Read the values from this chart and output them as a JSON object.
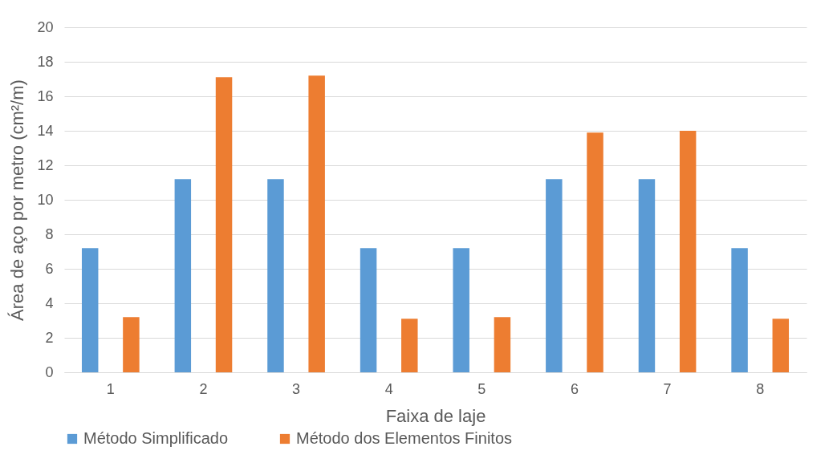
{
  "chart_data": {
    "type": "bar",
    "xlabel": "Faixa de laje",
    "ylabel": "Área de aço por metro (cm²/m)",
    "categories": [
      "1",
      "2",
      "3",
      "4",
      "5",
      "6",
      "7",
      "8"
    ],
    "series": [
      {
        "name": "Método Simplificado",
        "color": "#5b9bd5",
        "values": [
          7.2,
          11.2,
          11.2,
          7.2,
          7.2,
          11.2,
          11.2,
          7.2
        ]
      },
      {
        "name": "Método dos Elementos Finitos",
        "color": "#ed7d31",
        "values": [
          3.2,
          17.1,
          17.2,
          3.1,
          3.2,
          13.9,
          14.0,
          3.1
        ]
      }
    ],
    "ylim": [
      0,
      20
    ],
    "yticks": [
      0,
      2,
      4,
      6,
      8,
      10,
      12,
      14,
      16,
      18,
      20
    ],
    "grid": "y",
    "legend": "bottom"
  }
}
